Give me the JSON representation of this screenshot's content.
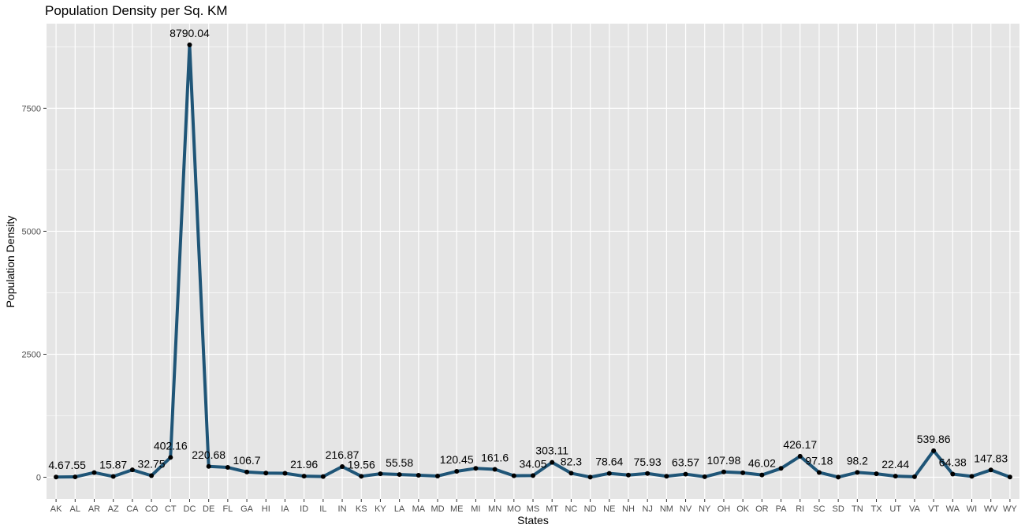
{
  "colors": {
    "panel": "#e5e5e5",
    "grid": "#ffffff",
    "line": "#1f5577",
    "point": "#000000",
    "tick_text": "#4d4d4d"
  },
  "chart_data": {
    "type": "line",
    "title": "Population Density per Sq. KM",
    "xlabel": "States",
    "ylabel": "Population Density",
    "ylim": [
      -440,
      9220
    ],
    "yticks": [
      0,
      2500,
      5000,
      7500
    ],
    "grid": true,
    "categories": [
      "AK",
      "AL",
      "AR",
      "AZ",
      "CA",
      "CO",
      "CT",
      "DC",
      "DE",
      "FL",
      "GA",
      "HI",
      "IA",
      "ID",
      "IL",
      "IN",
      "KS",
      "KY",
      "LA",
      "MA",
      "MD",
      "ME",
      "MI",
      "MN",
      "MO",
      "MS",
      "MT",
      "NC",
      "ND",
      "NE",
      "NH",
      "NJ",
      "NM",
      "NV",
      "NY",
      "OH",
      "OK",
      "OR",
      "PA",
      "RI",
      "SC",
      "SD",
      "TN",
      "TX",
      "UT",
      "VA",
      "VT",
      "WA",
      "WI",
      "WV",
      "WY"
    ],
    "values": [
      4.6,
      7.55,
      95,
      15.87,
      150,
      32.75,
      402.16,
      8790.04,
      220.68,
      200,
      106.7,
      85,
      80,
      21.96,
      15,
      216.87,
      19.56,
      70,
      55.58,
      40,
      25,
      120.45,
      180,
      161.6,
      30,
      34.05,
      303.11,
      82.3,
      3,
      78.64,
      45,
      75.93,
      20,
      63.57,
      10,
      107.98,
      90,
      46.02,
      180,
      426.17,
      97.18,
      3,
      98.2,
      70,
      22.44,
      10,
      539.86,
      64.38,
      18,
      147.83,
      5
    ],
    "labels": [
      "4.6",
      "7.55",
      "",
      "15.87",
      "",
      "32.75",
      "402.16",
      "8790.04",
      "220.68",
      "",
      "106.7",
      "",
      "",
      "21.96",
      "",
      "216.87",
      "19.56",
      "",
      "55.58",
      "",
      "",
      "120.45",
      "",
      "161.6",
      "",
      "34.05",
      "303.11",
      "82.3",
      "",
      "78.64",
      "",
      "75.93",
      "",
      "63.57",
      "",
      "107.98",
      "",
      "46.02",
      "",
      "426.17",
      "97.18",
      "",
      "98.2",
      "",
      "22.44",
      "",
      "539.86",
      "64.38",
      "",
      "147.83",
      ""
    ]
  }
}
